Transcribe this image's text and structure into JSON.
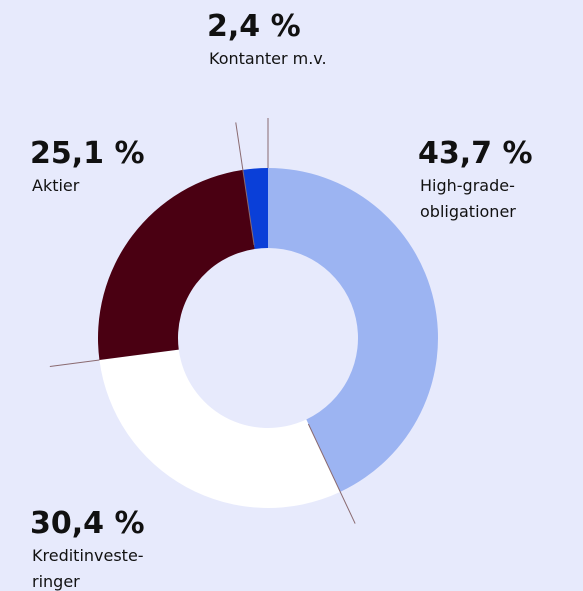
{
  "chart_data": {
    "type": "donut",
    "categories": [
      [
        "High-grade-",
        "obligationer"
      ],
      [
        "Kreditinveste-",
        "ringer"
      ],
      [
        "Aktier"
      ],
      [
        "Kontanter m.v."
      ]
    ],
    "values": [
      43.7,
      30.4,
      25.1,
      2.4
    ],
    "value_labels": [
      "43,7 %",
      "30,4 %",
      "25,1 %",
      "2,4 %"
    ],
    "colors": [
      "#9cb4f2",
      "#ffffff",
      "#4a0012",
      "#0a3fd8"
    ]
  }
}
